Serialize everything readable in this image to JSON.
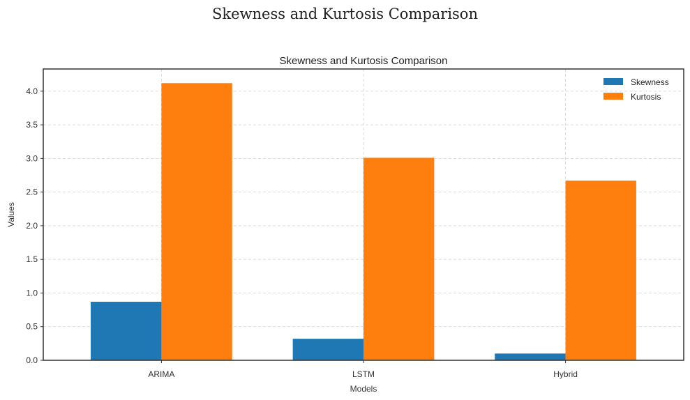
{
  "figure": {
    "suptitle": "Skewness and Kurtosis Comparison"
  },
  "chart_data": {
    "type": "bar",
    "title": "Skewness and Kurtosis Comparison",
    "xlabel": "Models",
    "ylabel": "Values",
    "categories": [
      "ARIMA",
      "LSTM",
      "Hybrid"
    ],
    "series": [
      {
        "name": "Skewness",
        "color": "#1f77b4",
        "values": [
          0.87,
          0.32,
          0.1
        ]
      },
      {
        "name": "Kurtosis",
        "color": "#ff7f0e",
        "values": [
          4.12,
          3.01,
          2.67
        ]
      }
    ],
    "ylim": [
      0,
      4.33
    ],
    "yticks": [
      "0.0",
      "0.5",
      "1.0",
      "1.5",
      "2.0",
      "2.5",
      "3.0",
      "3.5",
      "4.0"
    ],
    "grid": true,
    "legend_position": "top-right"
  }
}
